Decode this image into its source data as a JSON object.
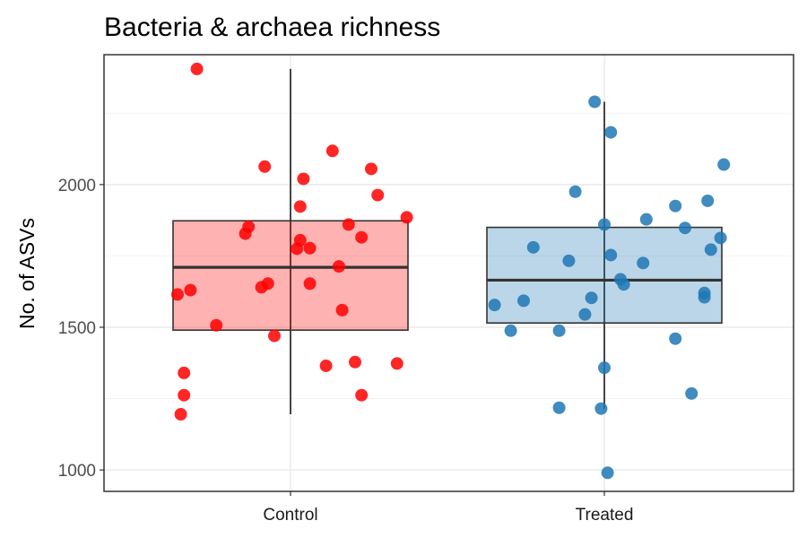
{
  "chart_data": {
    "type": "box",
    "title": "Bacteria & archaea richness",
    "xlabel": "",
    "ylabel": "No. of ASVs",
    "categories": [
      "Control",
      "Treated"
    ],
    "ylim": [
      925,
      2455
    ],
    "yticks": [
      1000,
      1500,
      2000
    ],
    "grid": true,
    "legend": "none",
    "groups": [
      {
        "category": "Control",
        "fill": "#ff0000",
        "point_color": "#ff0000",
        "box": {
          "whisker_low": 1195,
          "q1": 1490,
          "median": 1710,
          "q3": 1873,
          "whisker_high": 2405
        },
        "points": [
          [
            -0.35,
            1615
          ],
          [
            -0.31,
            1630
          ],
          [
            -0.33,
            1340
          ],
          [
            -0.33,
            1262
          ],
          [
            -0.34,
            1195
          ],
          [
            -0.29,
            2405
          ],
          [
            -0.23,
            1507
          ],
          [
            -0.14,
            1828
          ],
          [
            -0.13,
            1852
          ],
          [
            -0.09,
            1640
          ],
          [
            -0.07,
            1653
          ],
          [
            -0.08,
            2063
          ],
          [
            -0.05,
            1470
          ],
          [
            0.03,
            1923
          ],
          [
            0.04,
            2020
          ],
          [
            0.02,
            1775
          ],
          [
            0.03,
            1805
          ],
          [
            0.06,
            1777
          ],
          [
            0.06,
            1653
          ],
          [
            0.11,
            1365
          ],
          [
            0.13,
            2118
          ],
          [
            0.15,
            1713
          ],
          [
            0.16,
            1560
          ],
          [
            0.18,
            1860
          ],
          [
            0.2,
            1378
          ],
          [
            0.22,
            1262
          ],
          [
            0.22,
            1815
          ],
          [
            0.25,
            2055
          ],
          [
            0.27,
            1963
          ],
          [
            0.33,
            1373
          ],
          [
            0.36,
            1885
          ]
        ]
      },
      {
        "category": "Treated",
        "fill": "#1f77b4",
        "point_color": "#1f77b4",
        "box": {
          "whisker_low": 1215,
          "q1": 1515,
          "median": 1665,
          "q3": 1850,
          "whisker_high": 2290
        },
        "points": [
          [
            -0.34,
            1578
          ],
          [
            -0.29,
            1488
          ],
          [
            -0.25,
            1593
          ],
          [
            -0.22,
            1780
          ],
          [
            -0.14,
            1218
          ],
          [
            -0.14,
            1488
          ],
          [
            -0.11,
            1733
          ],
          [
            -0.09,
            1975
          ],
          [
            -0.06,
            1545
          ],
          [
            -0.04,
            1603
          ],
          [
            -0.03,
            2290
          ],
          [
            -0.01,
            1215
          ],
          [
            0.0,
            1860
          ],
          [
            0.0,
            1358
          ],
          [
            0.01,
            990
          ],
          [
            0.02,
            1753
          ],
          [
            0.02,
            2183
          ],
          [
            0.05,
            1668
          ],
          [
            0.06,
            1650
          ],
          [
            0.12,
            1725
          ],
          [
            0.13,
            1878
          ],
          [
            0.22,
            1925
          ],
          [
            0.22,
            1460
          ],
          [
            0.25,
            1848
          ],
          [
            0.27,
            1268
          ],
          [
            0.31,
            1620
          ],
          [
            0.31,
            1605
          ],
          [
            0.32,
            1943
          ],
          [
            0.33,
            1772
          ],
          [
            0.36,
            1813
          ],
          [
            0.37,
            2070
          ]
        ]
      }
    ]
  }
}
